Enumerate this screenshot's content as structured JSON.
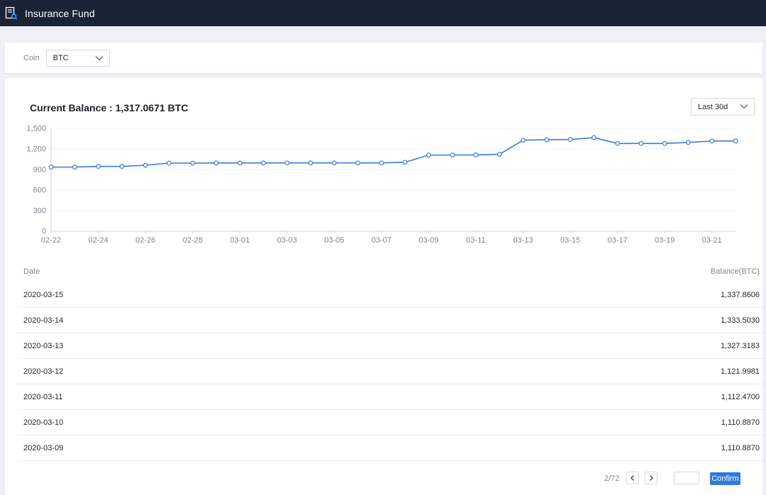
{
  "app": {
    "title": "Insurance Fund"
  },
  "filter": {
    "coin_label": "Coin",
    "coin_value": "BTC"
  },
  "balance": {
    "label": "Current Balance : 1,317.0671 BTC"
  },
  "range": {
    "value": "Last 30d"
  },
  "chart_data": {
    "type": "line",
    "title": "",
    "xlabel": "",
    "ylabel": "",
    "ylim": [
      0,
      1500
    ],
    "yticks": [
      "0",
      "300",
      "600",
      "900",
      "1,200",
      "1,500"
    ],
    "xticks": [
      "02-22",
      "02-24",
      "02-26",
      "02-28",
      "03-01",
      "03-03",
      "03-05",
      "03-07",
      "03-09",
      "03-11",
      "03-13",
      "03-15",
      "03-17",
      "03-19",
      "03-21"
    ],
    "grid": "horizontal",
    "line_color": "#3a7bd5",
    "x": [
      "02-22",
      "02-23",
      "02-24",
      "02-25",
      "02-26",
      "02-27",
      "02-28",
      "02-29",
      "03-01",
      "03-02",
      "03-03",
      "03-04",
      "03-05",
      "03-06",
      "03-07",
      "03-08",
      "03-09",
      "03-10",
      "03-11",
      "03-12",
      "03-13",
      "03-14",
      "03-15",
      "03-16",
      "03-17",
      "03-18",
      "03-19",
      "03-20",
      "03-21",
      "03-22"
    ],
    "values": [
      935,
      935,
      945,
      945,
      962,
      993,
      993,
      995,
      995,
      995,
      996,
      996,
      996,
      996,
      996,
      1005,
      1110.887,
      1110.887,
      1112.47,
      1121.9981,
      1327.3183,
      1333.503,
      1337.8606,
      1365,
      1280,
      1280,
      1280,
      1295,
      1315,
      1317.0671
    ]
  },
  "table": {
    "columns": [
      "Date",
      "Balance(BTC)"
    ],
    "rows": [
      {
        "date": "2020-03-15",
        "balance": "1,337.8606"
      },
      {
        "date": "2020-03-14",
        "balance": "1,333.5030"
      },
      {
        "date": "2020-03-13",
        "balance": "1,327.3183"
      },
      {
        "date": "2020-03-12",
        "balance": "1,121.9981"
      },
      {
        "date": "2020-03-11",
        "balance": "1,112.4700"
      },
      {
        "date": "2020-03-10",
        "balance": "1,110.8870"
      },
      {
        "date": "2020-03-09",
        "balance": "1,110.8870"
      }
    ]
  },
  "pagination": {
    "page_info": "2/72",
    "input_value": "",
    "confirm_label": "Confirm"
  }
}
